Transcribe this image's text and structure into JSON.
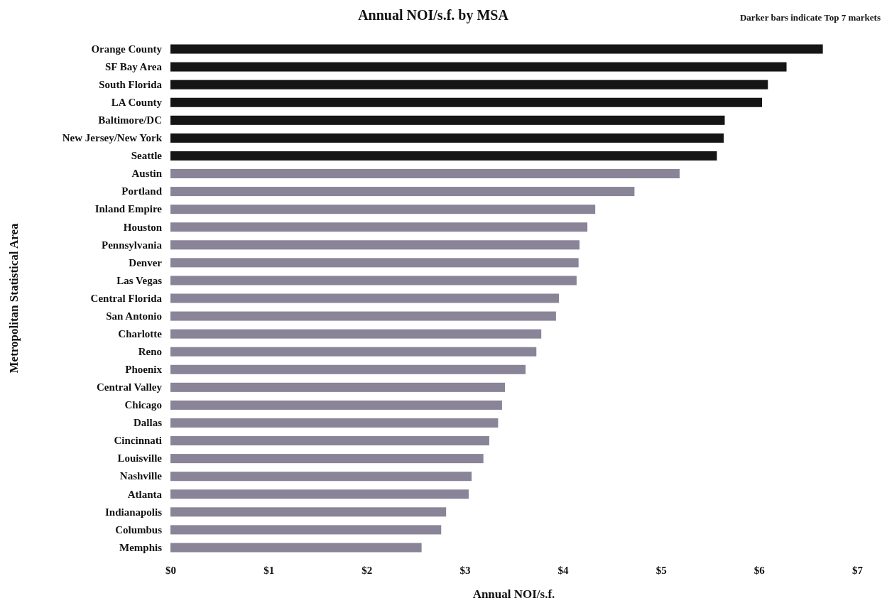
{
  "chart_data": {
    "type": "bar",
    "orientation": "horizontal",
    "title": "Annual NOI/s.f. by MSA",
    "xlabel": "Annual NOI/s.f.",
    "ylabel": "Metropolitan Statistical Area",
    "annotations": [
      "Darker bars indicate Top 7 markets"
    ],
    "categories": [
      "Orange County",
      "SF Bay Area",
      "South Florida",
      "LA County",
      "Baltimore/DC",
      "New Jersey/New York",
      "Seattle",
      "Austin",
      "Portland",
      "Inland Empire",
      "Houston",
      "Pennsylvania",
      "Denver",
      "Las Vegas",
      "Central Florida",
      "San Antonio",
      "Charlotte",
      "Reno",
      "Phoenix",
      "Central Valley",
      "Chicago",
      "Dallas",
      "Cincinnati",
      "Louisville",
      "Nashville",
      "Atlanta",
      "Indianapolis",
      "Columbus",
      "Memphis"
    ],
    "values": [
      6.65,
      6.28,
      6.09,
      6.03,
      5.65,
      5.64,
      5.57,
      5.19,
      4.73,
      4.33,
      4.25,
      4.17,
      4.16,
      4.14,
      3.96,
      3.93,
      3.78,
      3.73,
      3.62,
      3.41,
      3.38,
      3.34,
      3.25,
      3.19,
      3.07,
      3.04,
      2.81,
      2.76,
      2.56
    ],
    "colors": [
      "#151515",
      "#151515",
      "#151515",
      "#151515",
      "#151515",
      "#151515",
      "#151515",
      "#8a8498",
      "#8a8498",
      "#8a8498",
      "#8a8498",
      "#8a8498",
      "#8a8498",
      "#8a8498",
      "#8a8498",
      "#8a8498",
      "#8a8498",
      "#8a8498",
      "#8a8498",
      "#8a8498",
      "#8a8498",
      "#8a8498",
      "#8a8498",
      "#8a8498",
      "#8a8498",
      "#8a8498",
      "#8a8498",
      "#8a8498",
      "#8a8498"
    ],
    "xlim": [
      0,
      7
    ],
    "xticks": [
      {
        "value": 0,
        "label": "$0"
      },
      {
        "value": 1,
        "label": "$1"
      },
      {
        "value": 2,
        "label": "$2"
      },
      {
        "value": 3,
        "label": "$3"
      },
      {
        "value": 4,
        "label": "$4"
      },
      {
        "value": 5,
        "label": "$5"
      },
      {
        "value": 6,
        "label": "$6"
      },
      {
        "value": 7,
        "label": "$7"
      }
    ],
    "grid": false
  }
}
